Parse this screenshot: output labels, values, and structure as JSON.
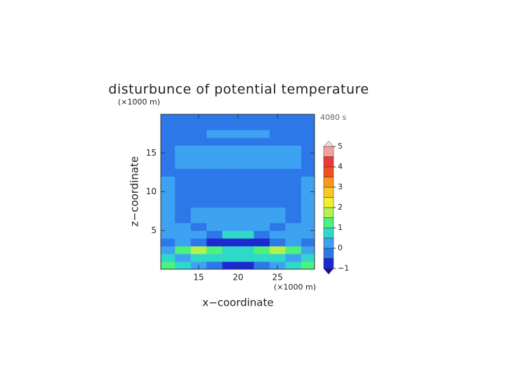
{
  "chart_data": {
    "type": "contour",
    "title": "disturbunce of potential temperature",
    "x_label": "x−coordinate",
    "y_label": "z−coordinate",
    "x_unit": "(×1000 m)",
    "y_unit": "(×1000 m)",
    "annotation": "4080 s",
    "xlim": [
      10.2,
      29.7
    ],
    "xticks": [
      15,
      20,
      25
    ],
    "ylim": [
      0,
      20
    ],
    "yticks": [
      5,
      10,
      15
    ],
    "x": [
      11,
      13,
      15,
      17,
      19,
      21,
      23,
      25,
      27,
      29
    ],
    "y": [
      0.5,
      1.5,
      2.5,
      3.5,
      4.5,
      5.5,
      6.5,
      7.5,
      8.5,
      9.5,
      10.5,
      11.5,
      12.5,
      13.5,
      14.5,
      15.5,
      16.5,
      17.5,
      18.5,
      19.5
    ],
    "z": [
      [
        1.2,
        0.7,
        0.2,
        -0.2,
        -0.7,
        -0.7,
        -0.2,
        0.2,
        0.7,
        1.2
      ],
      [
        0.7,
        0.2,
        0.7,
        0.7,
        0.7,
        0.7,
        0.7,
        0.7,
        0.2,
        0.7
      ],
      [
        0.2,
        1.2,
        1.7,
        1.2,
        0.7,
        0.7,
        1.2,
        1.7,
        1.2,
        0.2
      ],
      [
        -0.2,
        0.2,
        -0.2,
        -0.7,
        -0.7,
        -0.7,
        -0.7,
        -0.2,
        0.2,
        -0.2
      ],
      [
        0.2,
        0.2,
        0.2,
        -0.2,
        0.7,
        0.7,
        -0.2,
        0.2,
        0.2,
        0.2
      ],
      [
        0.2,
        0.2,
        -0.2,
        0.2,
        0.2,
        0.2,
        0.2,
        -0.2,
        0.2,
        0.2
      ],
      [
        0.2,
        -0.2,
        0.2,
        0.2,
        0.2,
        0.2,
        0.2,
        0.2,
        -0.2,
        0.2
      ],
      [
        0.2,
        -0.2,
        0.2,
        0.2,
        0.2,
        0.2,
        0.2,
        0.2,
        -0.2,
        0.2
      ],
      [
        0.2,
        -0.2,
        -0.2,
        -0.2,
        -0.2,
        -0.2,
        -0.2,
        -0.2,
        -0.2,
        0.2
      ],
      [
        0.2,
        -0.2,
        -0.2,
        -0.2,
        -0.2,
        -0.2,
        -0.2,
        -0.2,
        -0.2,
        0.2
      ],
      [
        0.2,
        -0.2,
        -0.2,
        -0.2,
        -0.2,
        -0.2,
        -0.2,
        -0.2,
        -0.2,
        0.2
      ],
      [
        0.2,
        -0.2,
        -0.2,
        -0.2,
        -0.2,
        -0.2,
        -0.2,
        -0.2,
        -0.2,
        0.2
      ],
      [
        -0.2,
        -0.2,
        -0.2,
        -0.2,
        -0.2,
        -0.2,
        -0.2,
        -0.2,
        -0.2,
        -0.2
      ],
      [
        -0.2,
        0.2,
        0.2,
        0.2,
        0.2,
        0.2,
        0.2,
        0.2,
        0.2,
        -0.2
      ],
      [
        -0.2,
        0.2,
        0.2,
        0.2,
        0.2,
        0.2,
        0.2,
        0.2,
        0.2,
        -0.2
      ],
      [
        -0.2,
        0.2,
        0.2,
        0.2,
        0.2,
        0.2,
        0.2,
        0.2,
        0.2,
        -0.2
      ],
      [
        -0.2,
        -0.2,
        -0.2,
        -0.2,
        -0.2,
        -0.2,
        -0.2,
        -0.2,
        -0.2,
        -0.2
      ],
      [
        -0.2,
        -0.2,
        -0.2,
        0.2,
        0.2,
        0.2,
        0.2,
        -0.2,
        -0.2,
        -0.2
      ],
      [
        -0.2,
        -0.2,
        -0.2,
        -0.2,
        -0.2,
        -0.2,
        -0.2,
        -0.2,
        -0.2,
        -0.2
      ],
      [
        -0.2,
        -0.2,
        -0.2,
        -0.2,
        -0.2,
        -0.2,
        -0.2,
        -0.2,
        -0.2,
        -0.2
      ]
    ],
    "levels": [
      -1,
      -0.5,
      0,
      0.5,
      1,
      1.5,
      2,
      2.5,
      3,
      3.5,
      4,
      4.5,
      5
    ],
    "colors": [
      "#1e28d2",
      "#2c78e8",
      "#3ea2f2",
      "#30d8c8",
      "#4ef080",
      "#b4f050",
      "#f0f030",
      "#f8c828",
      "#f89820",
      "#f05020",
      "#f03838",
      "#f8a0a0"
    ],
    "under_color": "#1010a0",
    "over_color": "#f8d8d8",
    "colorbar_ticks": [
      {
        "value": -1,
        "label": "−1"
      },
      0,
      1,
      2,
      3,
      4,
      5
    ]
  }
}
